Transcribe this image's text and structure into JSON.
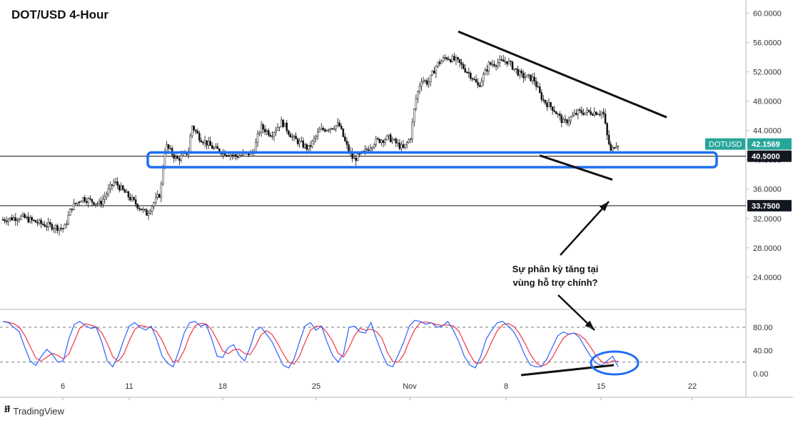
{
  "chart_data": {
    "type": "candlestick",
    "title": "DOT/USD 4-Hour",
    "symbol": "DOTUSD",
    "price_axis": {
      "ticks": [
        "60.0000",
        "56.0000",
        "52.0000",
        "48.0000",
        "44.0000",
        "40.0000",
        "36.0000",
        "32.0000",
        "28.0000",
        "24.0000"
      ],
      "tick_values": [
        60,
        56,
        52,
        48,
        44,
        40,
        36,
        32,
        28,
        24
      ],
      "range": [
        19.7,
        61.8
      ]
    },
    "time_axis": {
      "labels": [
        "6",
        "11",
        "18",
        "25",
        "Nov",
        "8",
        "15",
        "22"
      ]
    },
    "current_price": {
      "label": "DOTUSD",
      "value": "42.1569",
      "color": "#26a69a"
    },
    "levels": [
      {
        "value": 40.5,
        "label": "40.5000"
      },
      {
        "value": 33.75,
        "label": "33.7500"
      }
    ],
    "support_zone": {
      "from": 39.0,
      "to": 41.0,
      "color": "#1e6ff0"
    },
    "price_path": [
      [
        0,
        31.8
      ],
      [
        30,
        32.2
      ],
      [
        60,
        31.2
      ],
      [
        90,
        30.6
      ],
      [
        100,
        33.5
      ],
      [
        115,
        34.8
      ],
      [
        140,
        34
      ],
      [
        160,
        37
      ],
      [
        180,
        35
      ],
      [
        205,
        32.6
      ],
      [
        225,
        35.5
      ],
      [
        228,
        39
      ],
      [
        232,
        42
      ],
      [
        248,
        40
      ],
      [
        265,
        41.2
      ],
      [
        268,
        44.8
      ],
      [
        280,
        43
      ],
      [
        300,
        41.5
      ],
      [
        330,
        40.5
      ],
      [
        355,
        41
      ],
      [
        365,
        44.5
      ],
      [
        380,
        43.5
      ],
      [
        395,
        45.2
      ],
      [
        410,
        43
      ],
      [
        432,
        41.5
      ],
      [
        448,
        44
      ],
      [
        475,
        44.8
      ],
      [
        485,
        42
      ],
      [
        495,
        40
      ],
      [
        510,
        41
      ],
      [
        525,
        42.5
      ],
      [
        545,
        43
      ],
      [
        565,
        41.5
      ],
      [
        575,
        43
      ],
      [
        582,
        48
      ],
      [
        590,
        51
      ],
      [
        600,
        50.5
      ],
      [
        612,
        53
      ],
      [
        625,
        54
      ],
      [
        640,
        53.5
      ],
      [
        660,
        51.5
      ],
      [
        670,
        50
      ],
      [
        685,
        53
      ],
      [
        710,
        53.5
      ],
      [
        730,
        51.5
      ],
      [
        748,
        51
      ],
      [
        756,
        49
      ],
      [
        762,
        48
      ],
      [
        775,
        47
      ],
      [
        790,
        45
      ],
      [
        810,
        46.5
      ],
      [
        830,
        46.5
      ],
      [
        845,
        46.5
      ],
      [
        850,
        43.5
      ],
      [
        856,
        41
      ],
      [
        862,
        42.2
      ],
      [
        866,
        42.2
      ]
    ],
    "trendlines": [
      {
        "name": "resistance",
        "from": [
          642,
          57.5
        ],
        "to": [
          934,
          45.8
        ]
      },
      {
        "name": "support",
        "from": [
          756,
          40.6
        ],
        "to": [
          858,
          37.3
        ]
      }
    ],
    "annotation": {
      "text_line1": "Sự phân kỳ tăng tại",
      "text_line2": "vùng hỗ trợ chính?"
    },
    "oscillator": {
      "ticks": [
        "80.00",
        "40.00",
        "0.00"
      ],
      "tick_values": [
        80,
        40,
        0
      ],
      "levels": [
        80,
        20
      ],
      "k_color": "#2962ff",
      "d_color": "#f23645",
      "k": [
        90,
        88,
        80,
        72,
        45,
        22,
        14,
        30,
        42,
        33,
        20,
        22,
        60,
        85,
        90,
        83,
        78,
        80,
        55,
        22,
        12,
        30,
        58,
        82,
        88,
        80,
        75,
        82,
        60,
        30,
        18,
        12,
        38,
        70,
        88,
        90,
        82,
        85,
        60,
        30,
        28,
        45,
        50,
        32,
        22,
        45,
        75,
        80,
        68,
        55,
        35,
        15,
        10,
        25,
        55,
        82,
        88,
        75,
        82,
        55,
        32,
        20,
        34,
        80,
        82,
        72,
        70,
        88,
        60,
        35,
        15,
        12,
        33,
        55,
        82,
        92,
        90,
        85,
        88,
        80,
        82,
        90,
        75,
        55,
        30,
        15,
        10,
        30,
        60,
        75,
        88,
        90,
        82,
        72,
        55,
        32,
        15,
        12,
        12,
        25,
        45,
        65,
        72,
        68,
        70,
        62,
        45,
        30,
        18,
        14,
        22,
        30,
        12
      ]
    }
  },
  "brand": {
    "name": "TradingView"
  }
}
